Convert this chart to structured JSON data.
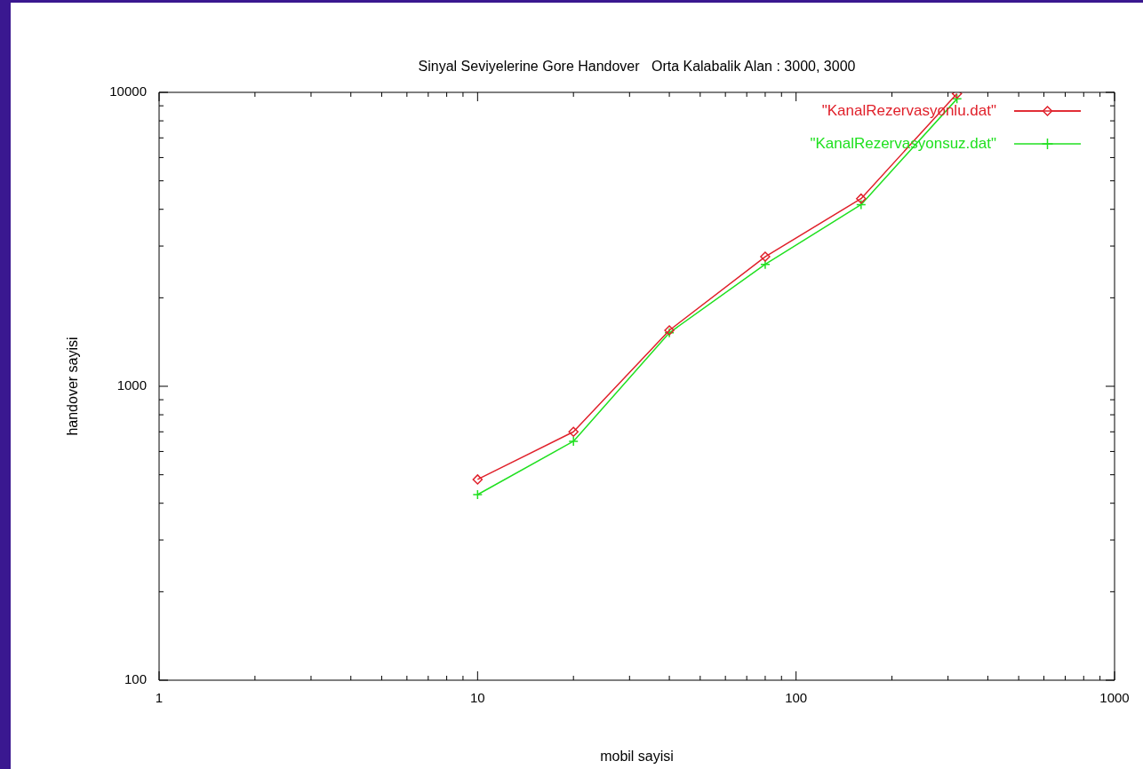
{
  "chart_data": {
    "type": "line",
    "title": "Sinyal Seviyelerine Gore Handover   Orta Kalabalik Alan : 3000, 3000",
    "xlabel": "mobil sayisi",
    "ylabel": "handover sayisi",
    "x": [
      10,
      20,
      40,
      80,
      160,
      320
    ],
    "series": [
      {
        "name": "\"KanalRezervasyonlu.dat\"",
        "color": "#e0202a",
        "marker": "diamond",
        "values": [
          482,
          700,
          1550,
          2760,
          4350,
          9900
        ]
      },
      {
        "name": "\"KanalRezervasyonsuz.dat\"",
        "color": "#20e020",
        "marker": "cross",
        "values": [
          428,
          650,
          1520,
          2600,
          4150,
          9500
        ]
      }
    ],
    "log": "xy",
    "xlim": [
      1,
      1000
    ],
    "ylim": [
      100,
      10000
    ],
    "xticks": [
      1,
      10,
      100,
      1000
    ],
    "yticks": [
      100,
      1000,
      10000
    ],
    "legend": "top right",
    "grid": false,
    "line_style": "solid"
  }
}
